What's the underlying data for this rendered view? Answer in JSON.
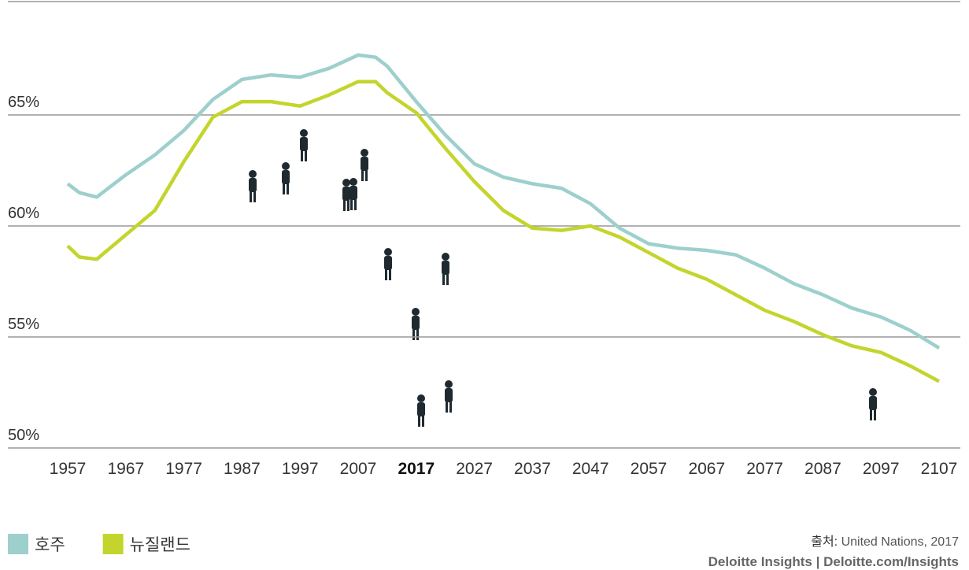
{
  "chart_data": {
    "type": "line",
    "x": [
      1957,
      1959,
      1962,
      1967,
      1972,
      1977,
      1982,
      1987,
      1992,
      1997,
      2002,
      2007,
      2010,
      2012,
      2017,
      2022,
      2027,
      2032,
      2037,
      2042,
      2047,
      2052,
      2057,
      2062,
      2067,
      2072,
      2077,
      2082,
      2087,
      2092,
      2097,
      2102,
      2107
    ],
    "series": [
      {
        "name": "호주",
        "color": "#9dd0cc",
        "values": [
          61.9,
          61.5,
          61.3,
          62.3,
          63.2,
          64.3,
          65.7,
          66.6,
          66.8,
          66.7,
          67.1,
          67.7,
          67.6,
          67.2,
          65.6,
          64.1,
          62.8,
          62.2,
          61.9,
          61.7,
          61.0,
          59.9,
          59.2,
          59.0,
          58.9,
          58.7,
          58.1,
          57.4,
          56.9,
          56.3,
          55.9,
          55.3,
          54.5
        ]
      },
      {
        "name": "뉴질랜드",
        "color": "#c3d52c",
        "values": [
          59.1,
          58.6,
          58.5,
          59.6,
          60.7,
          62.9,
          64.9,
          65.6,
          65.6,
          65.4,
          65.9,
          66.5,
          66.5,
          66.0,
          65.1,
          63.5,
          62.0,
          60.7,
          59.9,
          59.8,
          60.0,
          59.5,
          58.8,
          58.1,
          57.6,
          56.9,
          56.2,
          55.7,
          55.1,
          54.6,
          54.3,
          53.7,
          53.0
        ]
      }
    ],
    "xlim": [
      1957,
      2107
    ],
    "xticks": [
      1957,
      1967,
      1977,
      1987,
      1997,
      2007,
      2017,
      2027,
      2037,
      2047,
      2057,
      2067,
      2077,
      2087,
      2097,
      2107
    ],
    "highlight_xtick": 2017,
    "ylim": [
      50,
      70
    ],
    "yticks": [
      {
        "value": 50,
        "label": "50%"
      },
      {
        "value": 55,
        "label": "55%"
      },
      {
        "value": 60,
        "label": "60%"
      },
      {
        "value": 65,
        "label": "65%"
      }
    ],
    "grid": true,
    "source_label": "출처:",
    "source": "United Nations, 2017",
    "brand": "Deloitte Insights | Deloitte.com/Insights"
  }
}
